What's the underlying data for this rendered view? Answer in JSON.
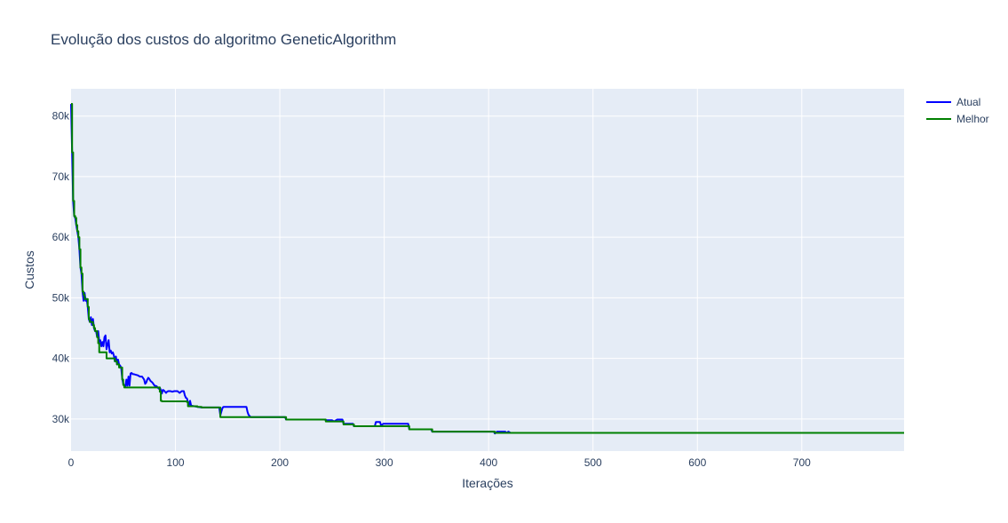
{
  "chart_data": {
    "type": "line",
    "title": "Evolução dos custos do algoritmo GeneticAlgorithm",
    "xlabel": "Iterações",
    "ylabel": "Custos",
    "xlim": [
      0,
      798
    ],
    "ylim": [
      24700,
      84500
    ],
    "x_ticks": [
      0,
      100,
      200,
      300,
      400,
      500,
      600,
      700
    ],
    "x_tick_labels": [
      "0",
      "100",
      "200",
      "300",
      "400",
      "500",
      "600",
      "700"
    ],
    "y_ticks": [
      30000,
      40000,
      50000,
      60000,
      70000,
      80000
    ],
    "y_tick_labels": [
      "30k",
      "40k",
      "50k",
      "60k",
      "70k",
      "80k"
    ],
    "grid": true,
    "legend_position": "top-right",
    "series": [
      {
        "name": "Atual",
        "color": "#0000ff",
        "step": false,
        "points": [
          [
            0,
            82000
          ],
          [
            1,
            74000
          ],
          [
            2,
            66000
          ],
          [
            3,
            63500
          ],
          [
            4,
            63200
          ],
          [
            5,
            62000
          ],
          [
            6,
            61000
          ],
          [
            7,
            60000
          ],
          [
            8,
            58000
          ],
          [
            9,
            55000
          ],
          [
            10,
            54000
          ],
          [
            11,
            51000
          ],
          [
            12,
            49500
          ],
          [
            13,
            50800
          ],
          [
            14,
            49500
          ],
          [
            15,
            49800
          ],
          [
            16,
            48500
          ],
          [
            17,
            46500
          ],
          [
            18,
            46000
          ],
          [
            19,
            46800
          ],
          [
            20,
            45500
          ],
          [
            21,
            46500
          ],
          [
            22,
            45000
          ],
          [
            23,
            44500
          ],
          [
            24,
            44500
          ],
          [
            25,
            43500
          ],
          [
            26,
            44500
          ],
          [
            27,
            42800
          ],
          [
            28,
            43000
          ],
          [
            29,
            42000
          ],
          [
            30,
            42700
          ],
          [
            31,
            42000
          ],
          [
            32,
            43500
          ],
          [
            33,
            43800
          ],
          [
            34,
            41500
          ],
          [
            35,
            42300
          ],
          [
            36,
            43000
          ],
          [
            37,
            41000
          ],
          [
            38,
            41300
          ],
          [
            39,
            40800
          ],
          [
            40,
            41000
          ],
          [
            41,
            40500
          ],
          [
            42,
            39500
          ],
          [
            43,
            40300
          ],
          [
            44,
            39000
          ],
          [
            45,
            39800
          ],
          [
            46,
            39000
          ],
          [
            47,
            38800
          ],
          [
            48,
            38500
          ],
          [
            49,
            36700
          ],
          [
            50,
            35800
          ],
          [
            51,
            35500
          ],
          [
            52,
            35300
          ],
          [
            53,
            36500
          ],
          [
            54,
            35500
          ],
          [
            55,
            37000
          ],
          [
            56,
            35500
          ],
          [
            57,
            37500
          ],
          [
            58,
            37600
          ],
          [
            59,
            37400
          ],
          [
            60,
            37400
          ],
          [
            62,
            37300
          ],
          [
            64,
            37200
          ],
          [
            66,
            37000
          ],
          [
            68,
            37000
          ],
          [
            70,
            36500
          ],
          [
            71,
            35800
          ],
          [
            72,
            36000
          ],
          [
            73,
            36500
          ],
          [
            74,
            36800
          ],
          [
            75,
            36600
          ],
          [
            76,
            36300
          ],
          [
            78,
            36000
          ],
          [
            80,
            35500
          ],
          [
            82,
            35400
          ],
          [
            84,
            35000
          ],
          [
            85,
            35200
          ],
          [
            86,
            34800
          ],
          [
            87,
            34200
          ],
          [
            88,
            34800
          ],
          [
            89,
            34700
          ],
          [
            90,
            34500
          ],
          [
            91,
            34300
          ],
          [
            92,
            34500
          ],
          [
            93,
            34600
          ],
          [
            95,
            34600
          ],
          [
            97,
            34500
          ],
          [
            99,
            34600
          ],
          [
            102,
            34600
          ],
          [
            104,
            34300
          ],
          [
            106,
            34600
          ],
          [
            108,
            34600
          ],
          [
            109,
            33900
          ],
          [
            110,
            33500
          ],
          [
            111,
            33400
          ],
          [
            112,
            32800
          ],
          [
            113,
            32300
          ],
          [
            114,
            33000
          ],
          [
            115,
            32200
          ],
          [
            118,
            32100
          ],
          [
            121,
            32000
          ],
          [
            125,
            31900
          ],
          [
            130,
            31900
          ],
          [
            140,
            31900
          ],
          [
            142,
            31900
          ],
          [
            143,
            30600
          ],
          [
            144,
            31200
          ],
          [
            145,
            31800
          ],
          [
            146,
            32000
          ],
          [
            160,
            32000
          ],
          [
            168,
            32000
          ],
          [
            169,
            31200
          ],
          [
            170,
            30700
          ],
          [
            172,
            30300
          ],
          [
            200,
            30300
          ],
          [
            205,
            30300
          ],
          [
            206,
            29900
          ],
          [
            243,
            29900
          ],
          [
            244,
            29800
          ],
          [
            250,
            29800
          ],
          [
            252,
            29600
          ],
          [
            255,
            29900
          ],
          [
            260,
            29900
          ],
          [
            261,
            29200
          ],
          [
            270,
            29200
          ],
          [
            271,
            28800
          ],
          [
            291,
            28800
          ],
          [
            292,
            29500
          ],
          [
            296,
            29500
          ],
          [
            297,
            28900
          ],
          [
            299,
            29200
          ],
          [
            318,
            29200
          ],
          [
            323,
            29200
          ],
          [
            324,
            28300
          ],
          [
            345,
            28300
          ],
          [
            346,
            27900
          ],
          [
            405,
            27900
          ],
          [
            406,
            27600
          ],
          [
            408,
            27900
          ],
          [
            416,
            27900
          ],
          [
            417,
            27700
          ],
          [
            419,
            27900
          ],
          [
            421,
            27700
          ],
          [
            798,
            27700
          ]
        ]
      },
      {
        "name": "Melhor",
        "color": "#008000",
        "step": true,
        "points": [
          [
            0,
            82000
          ],
          [
            1,
            74000
          ],
          [
            2,
            66000
          ],
          [
            3,
            63500
          ],
          [
            4,
            63200
          ],
          [
            5,
            62000
          ],
          [
            6,
            61000
          ],
          [
            7,
            60000
          ],
          [
            8,
            58000
          ],
          [
            9,
            55000
          ],
          [
            10,
            54000
          ],
          [
            11,
            51000
          ],
          [
            12,
            50500
          ],
          [
            13,
            49800
          ],
          [
            16,
            48500
          ],
          [
            17,
            46500
          ],
          [
            18,
            46000
          ],
          [
            21,
            45500
          ],
          [
            22,
            45000
          ],
          [
            23,
            44500
          ],
          [
            25,
            43500
          ],
          [
            26,
            42500
          ],
          [
            27,
            41000
          ],
          [
            34,
            40000
          ],
          [
            42,
            39500
          ],
          [
            44,
            39000
          ],
          [
            46,
            38500
          ],
          [
            49,
            36500
          ],
          [
            50,
            35600
          ],
          [
            51,
            35200
          ],
          [
            84,
            35200
          ],
          [
            85,
            34500
          ],
          [
            86,
            33000
          ],
          [
            87,
            32900
          ],
          [
            110,
            32900
          ],
          [
            111,
            32800
          ],
          [
            112,
            32100
          ],
          [
            121,
            32000
          ],
          [
            125,
            31900
          ],
          [
            142,
            31900
          ],
          [
            143,
            30300
          ],
          [
            205,
            30300
          ],
          [
            206,
            29900
          ],
          [
            243,
            29900
          ],
          [
            244,
            29600
          ],
          [
            260,
            29600
          ],
          [
            261,
            29100
          ],
          [
            270,
            29100
          ],
          [
            271,
            28800
          ],
          [
            323,
            28800
          ],
          [
            324,
            28300
          ],
          [
            345,
            28300
          ],
          [
            346,
            27900
          ],
          [
            405,
            27900
          ],
          [
            406,
            27700
          ],
          [
            798,
            27700
          ]
        ]
      }
    ]
  }
}
